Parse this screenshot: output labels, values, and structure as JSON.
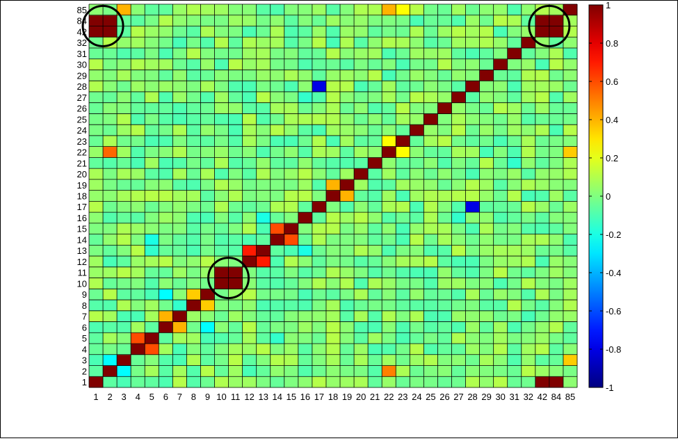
{
  "chart_data": {
    "type": "heatmap",
    "title": "",
    "xlabel": "",
    "ylabel": "",
    "labels": [
      "1",
      "2",
      "3",
      "4",
      "5",
      "6",
      "7",
      "8",
      "9",
      "10",
      "11",
      "12",
      "13",
      "14",
      "15",
      "16",
      "17",
      "18",
      "19",
      "20",
      "21",
      "22",
      "23",
      "24",
      "25",
      "26",
      "27",
      "28",
      "29",
      "30",
      "31",
      "32",
      "42",
      "84",
      "85"
    ],
    "colorbar": {
      "colormap": "jet",
      "range": [
        -1,
        1
      ],
      "ticks": [
        "-1",
        "-0.8",
        "-0.6",
        "-0.4",
        "-0.2",
        "0",
        "0.2",
        "0.4",
        "0.6",
        "0.8",
        "1"
      ]
    },
    "default_value": 0,
    "diagonal_value": 1,
    "cells": [
      {
        "row": "85",
        "col": "3",
        "value": 0.4
      },
      {
        "row": "85",
        "col": "22",
        "value": 0.4
      },
      {
        "row": "85",
        "col": "23",
        "value": 0.25
      },
      {
        "row": "84",
        "col": "1",
        "value": 1
      },
      {
        "row": "84",
        "col": "2",
        "value": 1
      },
      {
        "row": "42",
        "col": "1",
        "value": 1
      },
      {
        "row": "42",
        "col": "2",
        "value": 1
      },
      {
        "row": "84",
        "col": "42",
        "value": 1
      },
      {
        "row": "42",
        "col": "84",
        "value": 1
      },
      {
        "row": "28",
        "col": "17",
        "value": -0.8
      },
      {
        "row": "27",
        "col": "16",
        "value": -0.15
      },
      {
        "row": "23",
        "col": "22",
        "value": 0.25
      },
      {
        "row": "22",
        "col": "23",
        "value": 0.25
      },
      {
        "row": "22",
        "col": "2",
        "value": 0.55
      },
      {
        "row": "22",
        "col": "85",
        "value": 0.35
      },
      {
        "row": "21",
        "col": "31",
        "value": -0.15
      },
      {
        "row": "19",
        "col": "18",
        "value": 0.4
      },
      {
        "row": "18",
        "col": "19",
        "value": 0.4
      },
      {
        "row": "17",
        "col": "28",
        "value": -0.8
      },
      {
        "row": "16",
        "col": "27",
        "value": -0.15
      },
      {
        "row": "16",
        "col": "13",
        "value": -0.2
      },
      {
        "row": "15",
        "col": "14",
        "value": 0.6
      },
      {
        "row": "14",
        "col": "15",
        "value": 0.6
      },
      {
        "row": "14",
        "col": "5",
        "value": -0.2
      },
      {
        "row": "13",
        "col": "12",
        "value": 0.7
      },
      {
        "row": "12",
        "col": "13",
        "value": 0.7
      },
      {
        "row": "13",
        "col": "16",
        "value": -0.2
      },
      {
        "row": "13",
        "col": "5",
        "value": -0.15
      },
      {
        "row": "11",
        "col": "10",
        "value": 1
      },
      {
        "row": "10",
        "col": "11",
        "value": 1
      },
      {
        "row": "9",
        "col": "6",
        "value": -0.25
      },
      {
        "row": "9",
        "col": "8",
        "value": 0.35
      },
      {
        "row": "8",
        "col": "9",
        "value": 0.35
      },
      {
        "row": "8",
        "col": "7",
        "value": -0.15
      },
      {
        "row": "7",
        "col": "6",
        "value": 0.4
      },
      {
        "row": "6",
        "col": "7",
        "value": 0.4
      },
      {
        "row": "6",
        "col": "9",
        "value": -0.25
      },
      {
        "row": "5",
        "col": "4",
        "value": 0.6
      },
      {
        "row": "4",
        "col": "5",
        "value": 0.6
      },
      {
        "row": "5",
        "col": "14",
        "value": -0.15
      },
      {
        "row": "3",
        "col": "2",
        "value": -0.25
      },
      {
        "row": "2",
        "col": "3",
        "value": -0.25
      },
      {
        "row": "3",
        "col": "85",
        "value": 0.35
      },
      {
        "row": "2",
        "col": "22",
        "value": 0.5
      },
      {
        "row": "1",
        "col": "42",
        "value": 1
      },
      {
        "row": "1",
        "col": "84",
        "value": 1
      }
    ],
    "circled_blocks": [
      {
        "rows": [
          "84",
          "42"
        ],
        "cols": [
          "1",
          "2"
        ]
      },
      {
        "rows": [
          "11",
          "10"
        ],
        "cols": [
          "10",
          "11"
        ]
      },
      {
        "rows": [
          "84",
          "42"
        ],
        "cols": [
          "42",
          "84"
        ]
      }
    ]
  }
}
